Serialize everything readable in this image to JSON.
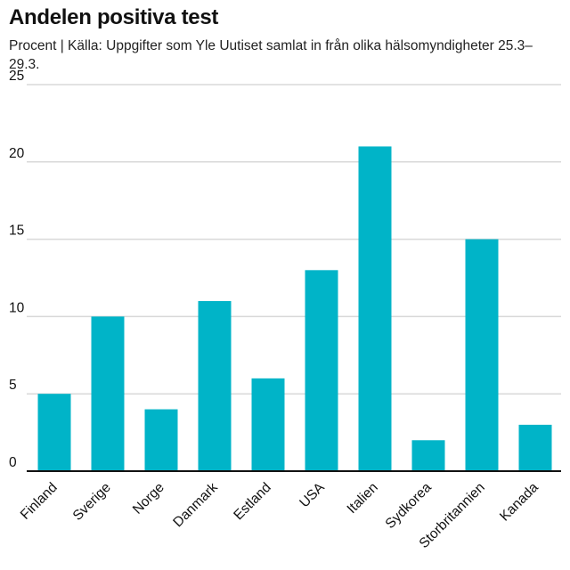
{
  "title": "Andelen positiva test",
  "subtitle": "Procent | Källa: Uppgifter som Yle Uutiset samlat in från olika hälsomyndigheter 25.3–29.3.",
  "colors": {
    "bar": "#00b4c8",
    "grid": "#d9d9d9",
    "axis": "#111111"
  },
  "chart_data": {
    "type": "bar",
    "categories": [
      "Finland",
      "Sverige",
      "Norge",
      "Danmark",
      "Estland",
      "USA",
      "Italien",
      "Sydkorea",
      "Storbritannien",
      "Kanada"
    ],
    "values": [
      5,
      10,
      4,
      11,
      6,
      13,
      21,
      2,
      15,
      3
    ],
    "ylim": [
      0,
      25
    ],
    "yticks": [
      0,
      5,
      10,
      15,
      20,
      25
    ],
    "xlabel": "",
    "ylabel": "",
    "grid": true,
    "legend": "none"
  }
}
